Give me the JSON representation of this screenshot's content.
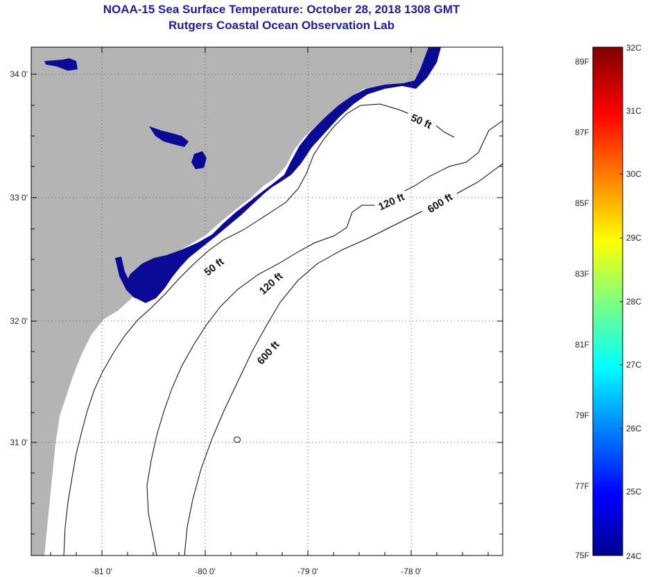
{
  "header": {
    "title": "NOAA-15 Sea Surface Temperature:  October 28, 2018 1308 GMT",
    "subtitle": "Rutgers Coastal Ocean Observation Lab"
  },
  "map": {
    "lat_ticks": [
      "34 0'",
      "33 0'",
      "32 0'",
      "31 0'"
    ],
    "lon_ticks": [
      "-81 0'",
      "-80 0'",
      "-79 0'",
      "-78 0'"
    ],
    "depth_contours": {
      "c50a": "50 ft",
      "c50b": "50 ft",
      "c120a": "120 ft",
      "c120b": "120 ft",
      "c600a": "600 ft",
      "c600b": "600 ft"
    },
    "colors": {
      "land": "#b4b4b4",
      "ocean": "#ffffff",
      "sst_cold": "#0a0a96"
    }
  },
  "colorbar": {
    "fahrenheit": [
      "89F",
      "87F",
      "85F",
      "83F",
      "81F",
      "79F",
      "77F",
      "75F"
    ],
    "celsius": [
      "32C",
      "31C",
      "30C",
      "29C",
      "28C",
      "27C",
      "26C",
      "25C",
      "24C"
    ],
    "range_c": [
      24,
      32
    ],
    "colormap": "jet"
  }
}
